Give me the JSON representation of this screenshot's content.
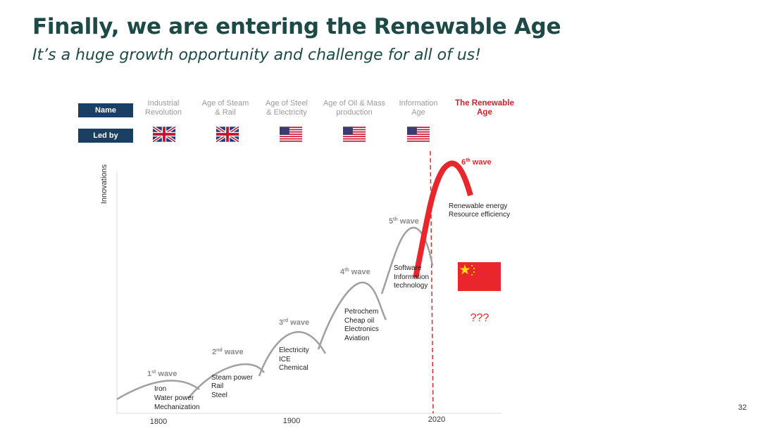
{
  "title": "Finally, we are entering the Renewable Age",
  "subtitle": "It’s a huge growth opportunity and challenge for all of us!",
  "rows": {
    "name_label": "Name",
    "led_by_label": "Led by"
  },
  "ages": [
    {
      "line1": "Industrial",
      "line2": "Revolution",
      "flag": "uk-flag"
    },
    {
      "line1": "Age of Steam",
      "line2": "& Rail",
      "flag": "uk-flag"
    },
    {
      "line1": "Age of Steel",
      "line2": "& Electricity",
      "flag": "us-flag"
    },
    {
      "line1": "Age of Oil & Mass",
      "line2": "production",
      "flag": "us-flag"
    },
    {
      "line1": "Information",
      "line2": "Age",
      "flag": "us-flag"
    },
    {
      "line1": "The Renewable",
      "line2": "Age",
      "flag": "china-flag"
    }
  ],
  "chart": {
    "ylabel": "Innovations",
    "x_ticks": [
      "1800",
      "1900",
      "2020"
    ],
    "waves": [
      {
        "label_num": "1",
        "label_sup": "st",
        "label_rest": " wave",
        "items": [
          "Iron",
          "Water power",
          "Mechanization"
        ]
      },
      {
        "label_num": "2",
        "label_sup": "nd",
        "label_rest": " wave",
        "items": [
          "Steam power",
          "Rail",
          "Steel"
        ]
      },
      {
        "label_num": "3",
        "label_sup": "rd",
        "label_rest": " wave",
        "items": [
          "Electricity",
          "ICE",
          "Chemical"
        ]
      },
      {
        "label_num": "4",
        "label_sup": "th",
        "label_rest": " wave",
        "items": [
          "Petrochem",
          "Cheap oil",
          "Electronics",
          "Aviation"
        ]
      },
      {
        "label_num": "5",
        "label_sup": "th",
        "label_rest": " wave",
        "items": [
          "Software",
          "Information",
          "technology"
        ]
      },
      {
        "label_num": "6",
        "label_sup": "th",
        "label_rest": " wave",
        "items": [
          "Renewable energy",
          "Resource efficiency"
        ]
      }
    ],
    "question": "???"
  },
  "colors": {
    "title": "#1d4a47",
    "label_bg": "#1b3f63",
    "accent_red": "#e8262b",
    "wave_gray": "#a0a0a0"
  },
  "page_number": "32"
}
